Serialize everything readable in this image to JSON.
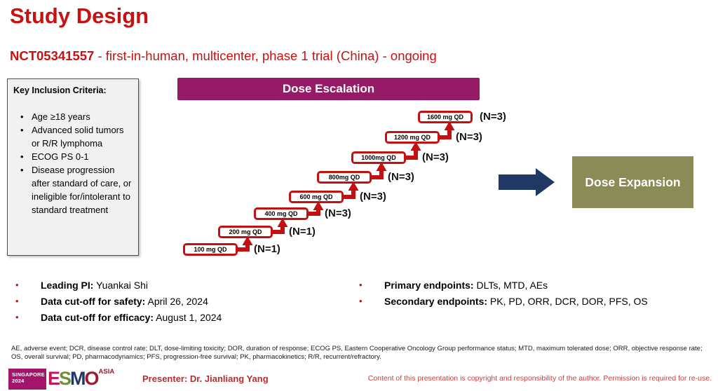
{
  "title": "Study Design",
  "subtitle": {
    "nct": "NCT05341557",
    "rest": " - first-in-human, multicenter, phase 1 trial (China) - ongoing"
  },
  "inclusion": {
    "title": "Key Inclusion Criteria:",
    "items": [
      "Age ≥18 years",
      "Advanced solid tumors or R/R lymphoma",
      "ECOG PS 0-1",
      "Disease progression after standard of care, or ineligible for/intolerant to standard treatment"
    ]
  },
  "escalation": {
    "header": "Dose Escalation",
    "header_color": "#951B66",
    "box_border_color": "#C31111",
    "steps": [
      {
        "dose": "100 mg QD",
        "n": "(N=1)"
      },
      {
        "dose": "200 mg QD",
        "n": "(N=1)"
      },
      {
        "dose": "400 mg QD",
        "n": "(N=3)"
      },
      {
        "dose": "600 mg QD",
        "n": "(N=3)"
      },
      {
        "dose": "800mg QD",
        "n": "(N=3)"
      },
      {
        "dose": "1000mg QD",
        "n": "(N=3)"
      },
      {
        "dose": "1200 mg QD",
        "n": "(N=3)"
      },
      {
        "dose": "1600 mg QD",
        "n": "(N=3)"
      }
    ]
  },
  "expansion": {
    "label": "Dose Expansion",
    "color": "#8B8B58",
    "arrow_color": "#1F3864"
  },
  "key_facts": [
    {
      "label": "Leading PI:",
      "value": " Yuankai Shi"
    },
    {
      "label": "Data cut-off for safety:",
      "value": " April 26, 2024"
    },
    {
      "label": "Data cut-off for efficacy:",
      "value": " August 1, 2024"
    }
  ],
  "endpoints": [
    {
      "label": "Primary endpoints:",
      "value": " DLTs, MTD, AEs"
    },
    {
      "label": "Secondary endpoints:",
      "value": " PK, PD, ORR, DCR, DOR, PFS, OS"
    }
  ],
  "footer": {
    "abbreviations": "AE, adverse event; DCR, disease control rate; DLT, dose-limiting toxicity; DOR, duration of response; ECOG PS, Eastern Cooperative Oncology Group performance status; MTD, maximum tolerated dose;  ORR, objective response rate; OS, overall survival; PD, pharmacodynamics; PFS, progression-free survival; PK, pharmacokinetics; R/R, recurrent/refractory.",
    "presenter": "Presenter: Dr. Jianliang Yang",
    "copyright": "Content of this presentation is copyright and responsibility of the author. Permission is required for re-use."
  },
  "logo": {
    "location": "SINGAPORE",
    "year": "2024",
    "letters": [
      {
        "char": "E",
        "color": "#C6175C"
      },
      {
        "char": "S",
        "color": "#6F8F3C"
      },
      {
        "char": "M",
        "color": "#1F3864"
      },
      {
        "char": "O",
        "color": "#9C1B33"
      }
    ],
    "region": "ASIA"
  }
}
